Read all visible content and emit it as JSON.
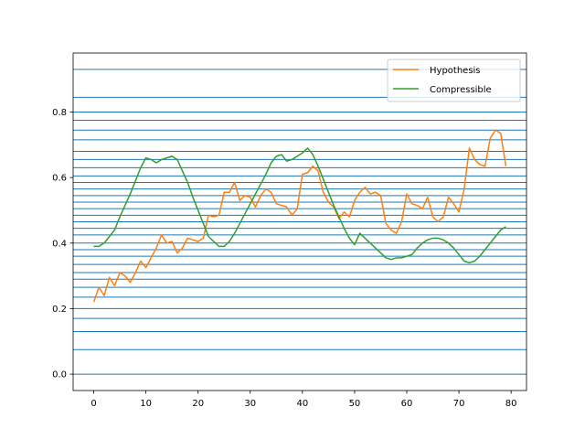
{
  "chart_data": {
    "type": "line",
    "xlim": [
      -3.95,
      82.95
    ],
    "ylim": [
      -0.05,
      0.98
    ],
    "x_ticks": [
      0,
      10,
      20,
      30,
      40,
      50,
      60,
      70,
      80
    ],
    "x_tick_labels": [
      "0",
      "10",
      "20",
      "30",
      "40",
      "50",
      "60",
      "70",
      "80"
    ],
    "y_ticks": [
      0.0,
      0.2,
      0.4,
      0.6,
      0.8
    ],
    "y_tick_labels": [
      "0.0",
      "0.2",
      "0.4",
      "0.6",
      "0.8"
    ],
    "horizontal_lines": {
      "color": "#1f77b4",
      "values": [
        0.0,
        0.075,
        0.13,
        0.17,
        0.2,
        0.235,
        0.265,
        0.29,
        0.31,
        0.335,
        0.36,
        0.38,
        0.4,
        0.425,
        0.445,
        0.465,
        0.485,
        0.505,
        0.525,
        0.545,
        0.565,
        0.585,
        0.605,
        0.63,
        0.655,
        0.68,
        0.715,
        0.745,
        0.775,
        0.8,
        0.845,
        0.93
      ]
    },
    "legend_position": "top-right",
    "series": [
      {
        "name": "Hypothesis",
        "color": "#ff7f0e",
        "values": [
          0.22,
          0.265,
          0.24,
          0.295,
          0.27,
          0.31,
          0.3,
          0.28,
          0.31,
          0.345,
          0.325,
          0.355,
          0.385,
          0.425,
          0.4,
          0.405,
          0.37,
          0.385,
          0.415,
          0.41,
          0.405,
          0.415,
          0.485,
          0.48,
          0.485,
          0.555,
          0.555,
          0.585,
          0.53,
          0.545,
          0.54,
          0.51,
          0.545,
          0.565,
          0.555,
          0.52,
          0.515,
          0.51,
          0.485,
          0.505,
          0.61,
          0.615,
          0.635,
          0.62,
          0.555,
          0.525,
          0.51,
          0.475,
          0.495,
          0.48,
          0.53,
          0.555,
          0.57,
          0.55,
          0.555,
          0.545,
          0.46,
          0.44,
          0.43,
          0.465,
          0.55,
          0.52,
          0.515,
          0.505,
          0.54,
          0.48,
          0.465,
          0.48,
          0.54,
          0.52,
          0.495,
          0.565,
          0.69,
          0.655,
          0.64,
          0.635,
          0.72,
          0.745,
          0.735,
          0.635
        ]
      },
      {
        "name": "Compressible",
        "color": "#2ca02c",
        "values": [
          0.39,
          0.39,
          0.4,
          0.42,
          0.44,
          0.48,
          0.515,
          0.55,
          0.59,
          0.63,
          0.66,
          0.655,
          0.645,
          0.655,
          0.66,
          0.665,
          0.655,
          0.62,
          0.585,
          0.54,
          0.5,
          0.46,
          0.42,
          0.405,
          0.39,
          0.39,
          0.405,
          0.43,
          0.46,
          0.49,
          0.52,
          0.55,
          0.58,
          0.61,
          0.645,
          0.665,
          0.67,
          0.65,
          0.655,
          0.665,
          0.675,
          0.69,
          0.67,
          0.635,
          0.595,
          0.555,
          0.515,
          0.48,
          0.445,
          0.415,
          0.395,
          0.43,
          0.415,
          0.4,
          0.385,
          0.37,
          0.355,
          0.35,
          0.355,
          0.355,
          0.36,
          0.365,
          0.385,
          0.4,
          0.41,
          0.415,
          0.415,
          0.41,
          0.4,
          0.385,
          0.365,
          0.345,
          0.34,
          0.345,
          0.36,
          0.38,
          0.4,
          0.42,
          0.44,
          0.45
        ]
      }
    ]
  }
}
